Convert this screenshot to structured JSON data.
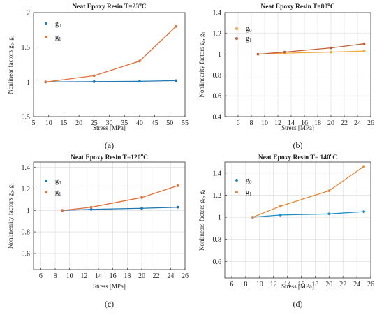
{
  "chart_data": [
    {
      "type": "line",
      "panel": "a",
      "caption": "(a)",
      "title": "Neat Epoxy Resin T=23",
      "title_sup": "o",
      "title_unit": "C",
      "xlabel": "Stress [MPa]",
      "ylabel": "Nonlinear factors g",
      "xlim": [
        5,
        55
      ],
      "ylim": [
        0.5,
        2
      ],
      "xticks": [
        5,
        10,
        15,
        20,
        25,
        30,
        35,
        40,
        45,
        50,
        55
      ],
      "yticks": [
        0.5,
        1,
        1.5,
        2
      ],
      "ytick_labels": [
        "0.5",
        "1",
        "1.5",
        "2"
      ],
      "grid": false,
      "legend": "top-left",
      "series": [
        {
          "name": "g",
          "sub": "0",
          "color": "#1f77b4",
          "x": [
            9,
            25,
            40,
            52
          ],
          "y": [
            1.0,
            1.005,
            1.01,
            1.02
          ]
        },
        {
          "name": "g",
          "sub": "1",
          "color": "#e0703c",
          "x": [
            9,
            25,
            40,
            52
          ],
          "y": [
            1.0,
            1.09,
            1.3,
            1.8
          ]
        }
      ]
    },
    {
      "type": "line",
      "panel": "b",
      "caption": "(b)",
      "title": "Neat Epoxy Resin T=80",
      "title_sup": "o",
      "title_unit": "C",
      "xlabel": "Stress [MPa]",
      "ylabel": "Nonlinearity factors g",
      "xlim": [
        4,
        26
      ],
      "ylim": [
        0.4,
        1.4
      ],
      "xticks": [
        6,
        8,
        10,
        12,
        14,
        16,
        18,
        20,
        22,
        24,
        26
      ],
      "yticks": [
        0.4,
        0.6,
        0.8,
        1,
        1.2,
        1.4
      ],
      "ytick_labels": [
        "0.4",
        "0.6",
        "0.8",
        "1",
        "1.2",
        "1.4"
      ],
      "grid": true,
      "legend": "top-left",
      "series": [
        {
          "name": "g",
          "sub": "0",
          "color": "#f2a93b",
          "x": [
            9,
            13,
            20,
            25
          ],
          "y": [
            1.0,
            1.01,
            1.02,
            1.03
          ]
        },
        {
          "name": "g",
          "sub": "1",
          "color": "#c0603a",
          "x": [
            9,
            13,
            20,
            25
          ],
          "y": [
            1.0,
            1.02,
            1.06,
            1.1
          ]
        }
      ]
    },
    {
      "type": "line",
      "panel": "c",
      "caption": "(c)",
      "title": "Neat Epoxy Resin T=120",
      "title_sup": "o",
      "title_unit": "C",
      "xlabel": "Stress [MPa]",
      "ylabel": "Nonlinearity factors g",
      "xlim": [
        5,
        26
      ],
      "ylim": [
        0.45,
        1.45
      ],
      "xticks": [
        6,
        8,
        10,
        12,
        14,
        16,
        18,
        20,
        22,
        24,
        26
      ],
      "yticks": [
        0.6,
        0.8,
        1,
        1.2,
        1.4
      ],
      "ytick_labels": [
        "0.6",
        "0.8",
        "1",
        "1.2",
        "1.4"
      ],
      "grid": true,
      "legend": "top-left",
      "series": [
        {
          "name": "g",
          "sub": "0",
          "color": "#1f77b4",
          "x": [
            9,
            13,
            20,
            25
          ],
          "y": [
            1.0,
            1.01,
            1.02,
            1.03
          ]
        },
        {
          "name": "g",
          "sub": "1",
          "color": "#e0703c",
          "x": [
            9,
            13,
            20,
            25
          ],
          "y": [
            1.0,
            1.03,
            1.12,
            1.23
          ]
        }
      ]
    },
    {
      "type": "line",
      "panel": "d",
      "caption": "(d)",
      "title": "Neat Epoxy Resin T= 140",
      "title_sup": "o",
      "title_unit": "C",
      "xlabel": "Stress [MPa]",
      "ylabel": "Nonlinears factors g",
      "xlim": [
        5,
        26
      ],
      "ylim": [
        0.45,
        1.5
      ],
      "xticks": [
        6,
        8,
        10,
        12,
        14,
        16,
        18,
        20,
        22,
        24,
        26
      ],
      "yticks": [
        0.6,
        0.8,
        1,
        1.2,
        1.4
      ],
      "ytick_labels": [
        "0.6",
        "0.8",
        "1",
        "1.2",
        "1.4"
      ],
      "grid": true,
      "legend": "top-left",
      "series": [
        {
          "name": "g",
          "sub": "0",
          "color": "#1f8fc4",
          "x": [
            9,
            13,
            20,
            25
          ],
          "y": [
            1.0,
            1.02,
            1.03,
            1.05
          ]
        },
        {
          "name": "g",
          "sub": "1",
          "color": "#e08a3a",
          "x": [
            9,
            13,
            20,
            25
          ],
          "y": [
            1.0,
            1.1,
            1.24,
            1.46
          ]
        }
      ]
    }
  ]
}
